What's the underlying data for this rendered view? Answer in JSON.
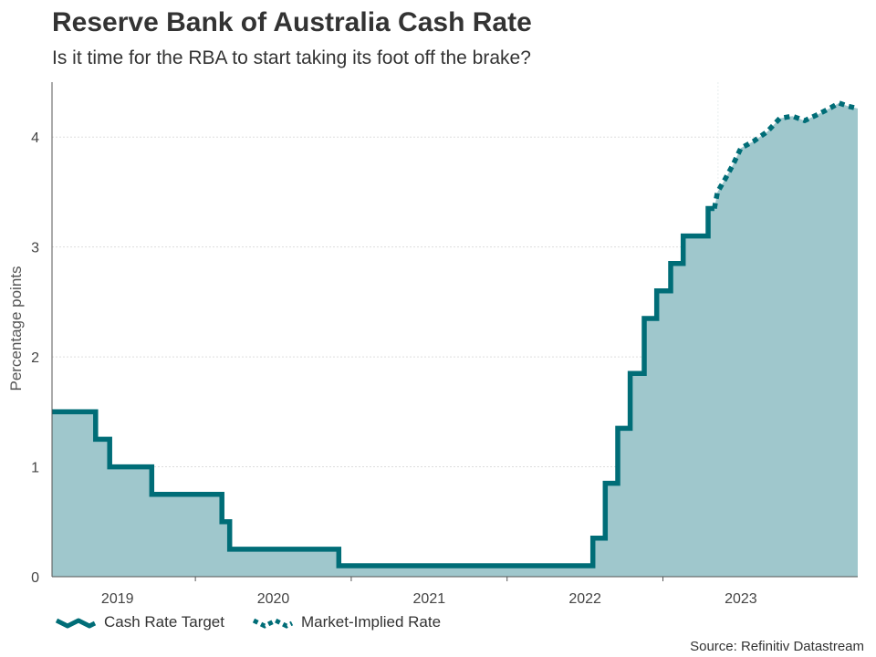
{
  "title": "Reserve Bank of Australia Cash Rate",
  "subtitle": "Is it time for the RBA to start taking its foot off the brake?",
  "source": "Source: Refinitiv Datastream",
  "colors": {
    "line": "#006d77",
    "fill": "#9fc7cc",
    "grid": "#dddddd",
    "axis": "#555555"
  },
  "chart_data": {
    "type": "area",
    "ylabel": "Percentage points",
    "ylim": [
      0,
      4.5
    ],
    "xlim": [
      2018.58,
      2023.75
    ],
    "yticks": [
      0,
      1,
      2,
      3,
      4
    ],
    "yticklabels": [
      "0",
      "1",
      "2",
      "3",
      "4"
    ],
    "xticklabels": [
      {
        "label": "2019",
        "x": 2019.0
      },
      {
        "label": "2020",
        "x": 2020.0
      },
      {
        "label": "2021",
        "x": 2021.0
      },
      {
        "label": "2022",
        "x": 2022.0
      },
      {
        "label": "2023",
        "x": 2023.0
      }
    ],
    "grid": true,
    "legend": "bottom-left",
    "series": [
      {
        "name": "Cash Rate Target",
        "style": "step",
        "points": [
          [
            2018.58,
            1.5
          ],
          [
            2018.86,
            1.5
          ],
          [
            2018.86,
            1.25
          ],
          [
            2018.95,
            1.25
          ],
          [
            2018.95,
            1.0
          ],
          [
            2019.22,
            1.0
          ],
          [
            2019.22,
            0.75
          ],
          [
            2019.67,
            0.75
          ],
          [
            2019.67,
            0.5
          ],
          [
            2019.72,
            0.5
          ],
          [
            2019.72,
            0.25
          ],
          [
            2020.42,
            0.25
          ],
          [
            2020.42,
            0.1
          ],
          [
            2022.05,
            0.1
          ],
          [
            2022.05,
            0.35
          ],
          [
            2022.13,
            0.35
          ],
          [
            2022.13,
            0.85
          ],
          [
            2022.21,
            0.85
          ],
          [
            2022.21,
            1.35
          ],
          [
            2022.29,
            1.35
          ],
          [
            2022.29,
            1.85
          ],
          [
            2022.38,
            1.85
          ],
          [
            2022.38,
            2.35
          ],
          [
            2022.46,
            2.35
          ],
          [
            2022.46,
            2.6
          ],
          [
            2022.55,
            2.6
          ],
          [
            2022.55,
            2.85
          ],
          [
            2022.63,
            2.85
          ],
          [
            2022.63,
            3.1
          ],
          [
            2022.79,
            3.1
          ],
          [
            2022.79,
            3.35
          ],
          [
            2022.83,
            3.35
          ]
        ]
      },
      {
        "name": "Market-Implied Rate",
        "style": "dotted",
        "points": [
          [
            2022.83,
            3.35
          ],
          [
            2022.85,
            3.5
          ],
          [
            2022.9,
            3.62
          ],
          [
            2022.95,
            3.75
          ],
          [
            2023.0,
            3.9
          ],
          [
            2023.08,
            3.96
          ],
          [
            2023.17,
            4.05
          ],
          [
            2023.25,
            4.17
          ],
          [
            2023.33,
            4.19
          ],
          [
            2023.41,
            4.15
          ],
          [
            2023.5,
            4.21
          ],
          [
            2023.58,
            4.27
          ],
          [
            2023.63,
            4.31
          ],
          [
            2023.69,
            4.28
          ],
          [
            2023.75,
            4.26
          ]
        ]
      }
    ]
  }
}
